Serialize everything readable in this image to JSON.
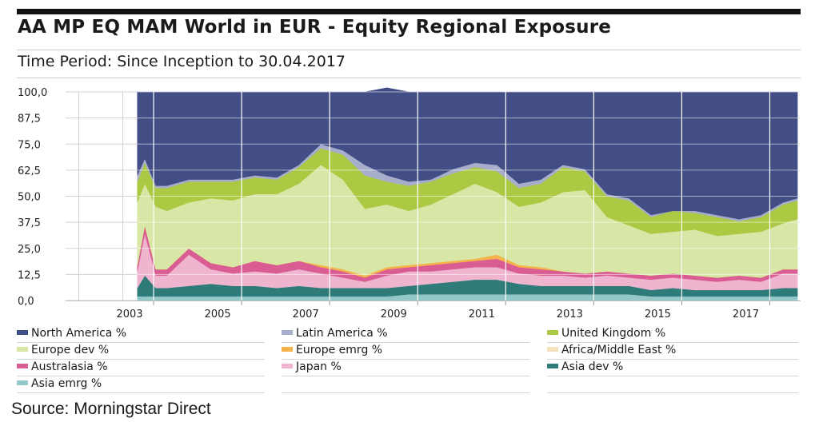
{
  "header": {
    "title": "AA MP EQ MAM World in EUR - Equity Regional Exposure",
    "period": "Time Period: Since Inception to 30.04.2017"
  },
  "source": "Source: Morningstar Direct",
  "chart_data": {
    "type": "area",
    "stacked": true,
    "title": "AA MP EQ MAM World in EUR - Equity Regional Exposure",
    "xlabel": "",
    "ylabel": "",
    "ylim": [
      0,
      100
    ],
    "xlim": [
      2000.7,
      2017.4
    ],
    "yticks": [
      "0,0",
      "12,5",
      "25,0",
      "37,5",
      "50,0",
      "62,5",
      "75,0",
      "87,5",
      "100,0"
    ],
    "xticks": [
      "2003",
      "2005",
      "2007",
      "2009",
      "2011",
      "2013",
      "2015",
      "2017"
    ],
    "x": [
      2002.33,
      2002.5,
      2002.75,
      2003.0,
      2003.5,
      2004.0,
      2004.5,
      2005.0,
      2005.5,
      2006.0,
      2006.5,
      2007.0,
      2007.5,
      2008.0,
      2008.5,
      2009.0,
      2009.5,
      2010.0,
      2010.5,
      2011.0,
      2011.5,
      2012.0,
      2012.5,
      2013.0,
      2013.5,
      2014.0,
      2014.5,
      2015.0,
      2015.5,
      2016.0,
      2016.5,
      2017.0,
      2017.33
    ],
    "series": [
      {
        "name": "Asia emrg %",
        "color": "#94c7c7",
        "values": [
          2,
          2,
          2,
          2,
          2,
          2,
          2,
          2,
          2,
          2,
          2,
          2,
          2,
          2,
          3,
          3,
          3,
          3,
          3,
          3,
          3,
          3,
          3,
          3,
          3,
          2,
          2,
          2,
          2,
          2,
          2,
          2,
          2
        ]
      },
      {
        "name": "Asia dev %",
        "color": "#2e7b7a",
        "values": [
          4,
          10,
          4,
          4,
          5,
          6,
          5,
          5,
          4,
          5,
          4,
          4,
          4,
          4,
          4,
          5,
          6,
          7,
          7,
          5,
          4,
          4,
          4,
          4,
          4,
          3,
          4,
          3,
          3,
          3,
          3,
          4,
          4
        ]
      },
      {
        "name": "Japan %",
        "color": "#efb5cf",
        "values": [
          8,
          20,
          6,
          6,
          15,
          7,
          6,
          7,
          7,
          8,
          7,
          5,
          3,
          6,
          7,
          6,
          6,
          6,
          6,
          5,
          5,
          5,
          4,
          5,
          4,
          5,
          5,
          5,
          4,
          5,
          4,
          7,
          7
        ]
      },
      {
        "name": "Australasia %",
        "color": "#d95c93",
        "values": [
          3,
          4,
          3,
          3,
          3,
          3,
          3,
          5,
          4,
          4,
          3,
          3,
          2,
          3,
          2,
          3,
          3,
          3,
          4,
          3,
          3,
          2,
          2,
          2,
          2,
          2,
          2,
          2,
          2,
          2,
          2,
          2,
          2
        ]
      },
      {
        "name": "Africa/Middle East %",
        "color": "#f6e1bf",
        "values": [
          0,
          0,
          0,
          0,
          0,
          0,
          0,
          0,
          0,
          0,
          0,
          0,
          0,
          0,
          0,
          0,
          0,
          0,
          0,
          0,
          0,
          0,
          0,
          0,
          0,
          0,
          0,
          0,
          0,
          0,
          0,
          0,
          0
        ]
      },
      {
        "name": "Europe emrg %",
        "color": "#f4b24a",
        "values": [
          0,
          0,
          0,
          0,
          0,
          0,
          0,
          0,
          0,
          0,
          1,
          1,
          1,
          1,
          1,
          1,
          1,
          1,
          2,
          1,
          1,
          0,
          0,
          0,
          0,
          0,
          0,
          0,
          0,
          0,
          0,
          0,
          0
        ]
      },
      {
        "name": "Europe dev %",
        "color": "#d9e7a6",
        "values": [
          30,
          20,
          30,
          28,
          22,
          31,
          32,
          32,
          34,
          37,
          48,
          43,
          32,
          30,
          26,
          28,
          32,
          36,
          30,
          28,
          31,
          38,
          40,
          26,
          23,
          20,
          20,
          22,
          20,
          20,
          22,
          22,
          24
        ]
      },
      {
        "name": "United Kingdom %",
        "color": "#acc943",
        "values": [
          10,
          10,
          9,
          11,
          10,
          8,
          9,
          8,
          7,
          8,
          8,
          12,
          16,
          11,
          12,
          11,
          10,
          8,
          10,
          9,
          9,
          12,
          9,
          10,
          12,
          8,
          10,
          8,
          9,
          6,
          7,
          9,
          9
        ]
      },
      {
        "name": "Latin America %",
        "color": "#a6aecb",
        "values": [
          3,
          2,
          1,
          1,
          1,
          1,
          1,
          1,
          1,
          1,
          2,
          2,
          5,
          3,
          2,
          1,
          2,
          2,
          3,
          2,
          2,
          1,
          1,
          1,
          1,
          1,
          0,
          1,
          1,
          1,
          1,
          1,
          1
        ]
      },
      {
        "name": "North America %",
        "color": "#434e87",
        "values": [
          40,
          32,
          45,
          45,
          42,
          42,
          42,
          40,
          41,
          35,
          25,
          28,
          35,
          42,
          43,
          42,
          37,
          34,
          35,
          44,
          42,
          35,
          37,
          49,
          51,
          59,
          57,
          57,
          59,
          61,
          59,
          53,
          51
        ]
      }
    ]
  },
  "legend": {
    "items": [
      {
        "label": "North America %",
        "color": "#434e87"
      },
      {
        "label": "Latin America %",
        "color": "#a6aecb"
      },
      {
        "label": "United Kingdom %",
        "color": "#acc943"
      },
      {
        "label": "Europe dev %",
        "color": "#d9e7a6"
      },
      {
        "label": "Europe emrg %",
        "color": "#f4b24a"
      },
      {
        "label": "Africa/Middle East %",
        "color": "#f6e1bf"
      },
      {
        "label": "Australasia %",
        "color": "#d95c93"
      },
      {
        "label": "Japan %",
        "color": "#efb5cf"
      },
      {
        "label": "Asia dev %",
        "color": "#2e7b7a"
      },
      {
        "label": "Asia emrg %",
        "color": "#94c7c7"
      }
    ]
  }
}
